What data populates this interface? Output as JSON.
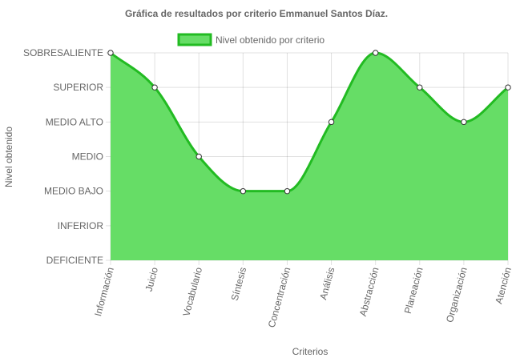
{
  "chart_data": {
    "type": "area",
    "title": "Gráfica de resultados por criterio Emmanuel Santos Díaz.",
    "xlabel": "Criterios",
    "ylabel": "Nivel obtenido",
    "levels": [
      "DEFICIENTE",
      "INFERIOR",
      "MEDIO BAJO",
      "MEDIO",
      "MEDIO ALTO",
      "SUPERIOR",
      "SOBRESALIENTE"
    ],
    "categories": [
      "Información",
      "Juicio",
      "Vocabulario",
      "Síntesis",
      "Concentración",
      "Análisis",
      "Abstracción",
      "Planeación",
      "Organización",
      "Atención"
    ],
    "series": [
      {
        "name": "Nivel obtenido por criterio",
        "values": [
          "SOBRESALIENTE",
          "SUPERIOR",
          "MEDIO",
          "MEDIO BAJO",
          "MEDIO BAJO",
          "MEDIO ALTO",
          "SOBRESALIENTE",
          "SUPERIOR",
          "MEDIO ALTO",
          "SUPERIOR"
        ]
      }
    ],
    "legend": "top",
    "grid": true,
    "colors": {
      "fill": "#66dd66",
      "line": "#22bb22",
      "point_fill": "#ffffff",
      "point_stroke": "#333333"
    }
  }
}
